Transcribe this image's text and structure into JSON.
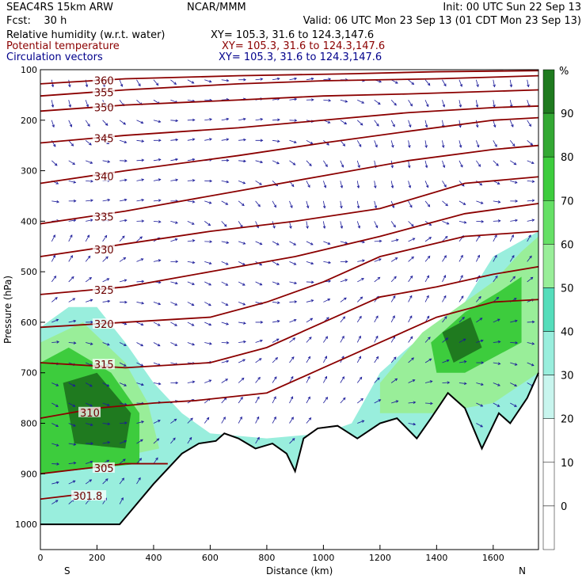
{
  "header": {
    "line1_left": "SEAC4RS 15km ARW",
    "line1_center": "NCAR/MMM",
    "line1_right": "Init: 00 UTC Sun 22 Sep 13",
    "line2_left": "Fcst:    30 h",
    "line2_right": "Valid: 06 UTC Mon 23 Sep 13 (01 CDT Mon 23 Sep 13)",
    "fields": [
      {
        "name": "Relative humidity (w.r.t. water)",
        "xy": "XY= 105.3, 31.6 to 124.3,147.6",
        "color": "#000000"
      },
      {
        "name": "Potential temperature",
        "xy": "XY= 105.3, 31.6 to 124.3,147.6",
        "color": "#8b0000"
      },
      {
        "name": "Circulation vectors",
        "xy": "XY= 105.3, 31.6 to 124.3,147.6",
        "color": "#00008b"
      }
    ]
  },
  "chart_data": {
    "type": "heatmap",
    "title": "",
    "xlabel": "Distance (km)",
    "ylabel": "Pressure (hPa)",
    "xlim": [
      0,
      1760
    ],
    "ylim": [
      1050,
      100
    ],
    "x_ticks": [
      0,
      200,
      400,
      600,
      800,
      1000,
      1200,
      1400,
      1600
    ],
    "y_ticks": [
      100,
      200,
      300,
      400,
      500,
      600,
      700,
      800,
      900,
      1000
    ],
    "x_end_labels": {
      "left": "S",
      "right": "N"
    },
    "colorbar": {
      "unit": "%",
      "labels": [
        "90",
        "80",
        "70",
        "60",
        "50",
        "40",
        "30",
        "20",
        "10",
        "0"
      ],
      "bounds": [
        100,
        90,
        80,
        70,
        60,
        50,
        40,
        30,
        20,
        10,
        0,
        -10
      ],
      "colors": [
        "#1f7a1f",
        "#33a833",
        "#3dcc3d",
        "#66e066",
        "#99ee99",
        "#55ddbb",
        "#99eedd",
        "#c8f5ee",
        "#ffffff",
        "#ffffff",
        "#ffffff"
      ]
    },
    "theta_contours": [
      {
        "label": "360",
        "points": [
          [
            0,
            128
          ],
          [
            300,
            118
          ],
          [
            700,
            112
          ],
          [
            1100,
            108
          ],
          [
            1400,
            104
          ],
          [
            1760,
            102
          ]
        ]
      },
      {
        "label": "355",
        "points": [
          [
            0,
            152
          ],
          [
            300,
            140
          ],
          [
            700,
            128
          ],
          [
            1000,
            122
          ],
          [
            1400,
            118
          ],
          [
            1760,
            112
          ]
        ]
      },
      {
        "label": "350",
        "points": [
          [
            0,
            182
          ],
          [
            300,
            170
          ],
          [
            700,
            160
          ],
          [
            1000,
            152
          ],
          [
            1300,
            148
          ],
          [
            1760,
            140
          ]
        ]
      },
      {
        "label": "345",
        "points": [
          [
            0,
            245
          ],
          [
            300,
            230
          ],
          [
            700,
            215
          ],
          [
            1000,
            200
          ],
          [
            1300,
            185
          ],
          [
            1600,
            175
          ],
          [
            1760,
            172
          ]
        ]
      },
      {
        "label": "340",
        "points": [
          [
            0,
            325
          ],
          [
            300,
            300
          ],
          [
            700,
            270
          ],
          [
            1000,
            245
          ],
          [
            1300,
            222
          ],
          [
            1600,
            200
          ],
          [
            1760,
            195
          ]
        ]
      },
      {
        "label": "335",
        "points": [
          [
            0,
            405
          ],
          [
            300,
            380
          ],
          [
            700,
            340
          ],
          [
            1000,
            310
          ],
          [
            1300,
            280
          ],
          [
            1600,
            258
          ],
          [
            1760,
            250
          ]
        ]
      },
      {
        "label": "330",
        "points": [
          [
            0,
            470
          ],
          [
            300,
            445
          ],
          [
            600,
            420
          ],
          [
            900,
            400
          ],
          [
            1200,
            375
          ],
          [
            1500,
            325
          ],
          [
            1760,
            312
          ]
        ]
      },
      {
        "label": "325",
        "points": [
          [
            0,
            545
          ],
          [
            300,
            530
          ],
          [
            600,
            500
          ],
          [
            900,
            470
          ],
          [
            1200,
            430
          ],
          [
            1500,
            385
          ],
          [
            1760,
            365
          ]
        ]
      },
      {
        "label": "320",
        "points": [
          [
            0,
            610
          ],
          [
            300,
            600
          ],
          [
            600,
            590
          ],
          [
            800,
            560
          ],
          [
            1000,
            520
          ],
          [
            1200,
            470
          ],
          [
            1500,
            430
          ],
          [
            1760,
            420
          ]
        ]
      },
      {
        "label": "315",
        "points": [
          [
            0,
            680
          ],
          [
            300,
            690
          ],
          [
            600,
            680
          ],
          [
            800,
            650
          ],
          [
            1000,
            600
          ],
          [
            1200,
            550
          ],
          [
            1400,
            530
          ],
          [
            1600,
            505
          ],
          [
            1760,
            490
          ]
        ]
      },
      {
        "label": "310",
        "points": [
          [
            0,
            790
          ],
          [
            200,
            770
          ],
          [
            400,
            760
          ],
          [
            550,
            755
          ],
          [
            800,
            740
          ],
          [
            1000,
            690
          ],
          [
            1200,
            640
          ],
          [
            1400,
            590
          ],
          [
            1600,
            560
          ],
          [
            1760,
            555
          ]
        ]
      },
      {
        "label": "305",
        "points": [
          [
            0,
            900
          ],
          [
            300,
            880
          ],
          [
            450,
            880
          ]
        ]
      },
      {
        "label": "301.8",
        "points": [
          [
            0,
            950
          ],
          [
            150,
            940
          ]
        ]
      }
    ],
    "terrain_pressure": [
      [
        0,
        1000
      ],
      [
        280,
        1000
      ],
      [
        400,
        920
      ],
      [
        500,
        860
      ],
      [
        560,
        840
      ],
      [
        620,
        835
      ],
      [
        650,
        820
      ],
      [
        700,
        830
      ],
      [
        760,
        850
      ],
      [
        820,
        840
      ],
      [
        870,
        860
      ],
      [
        900,
        895
      ],
      [
        930,
        830
      ],
      [
        980,
        810
      ],
      [
        1050,
        805
      ],
      [
        1120,
        830
      ],
      [
        1200,
        800
      ],
      [
        1260,
        790
      ],
      [
        1330,
        830
      ],
      [
        1380,
        790
      ],
      [
        1440,
        740
      ],
      [
        1500,
        770
      ],
      [
        1560,
        850
      ],
      [
        1620,
        780
      ],
      [
        1660,
        800
      ],
      [
        1720,
        750
      ],
      [
        1760,
        700
      ]
    ],
    "rh_regions": [
      {
        "rh": 35,
        "points": [
          [
            0,
            610
          ],
          [
            100,
            570
          ],
          [
            200,
            570
          ],
          [
            300,
            640
          ],
          [
            400,
            720
          ],
          [
            500,
            780
          ],
          [
            600,
            820
          ],
          [
            800,
            830
          ],
          [
            1000,
            820
          ],
          [
            1100,
            800
          ],
          [
            1200,
            700
          ],
          [
            1300,
            650
          ],
          [
            1500,
            560
          ],
          [
            1600,
            470
          ],
          [
            1760,
            420
          ],
          [
            1760,
            1000
          ],
          [
            0,
            1000
          ]
        ]
      },
      {
        "rh": 55,
        "points": [
          [
            0,
            640
          ],
          [
            150,
            600
          ],
          [
            300,
            680
          ],
          [
            380,
            760
          ],
          [
            420,
            850
          ],
          [
            0,
            900
          ]
        ]
      },
      {
        "rh": 75,
        "points": [
          [
            0,
            680
          ],
          [
            100,
            650
          ],
          [
            250,
            700
          ],
          [
            350,
            780
          ],
          [
            350,
            880
          ],
          [
            0,
            900
          ]
        ]
      },
      {
        "rh": 92,
        "points": [
          [
            80,
            720
          ],
          [
            200,
            700
          ],
          [
            320,
            780
          ],
          [
            300,
            850
          ],
          [
            120,
            840
          ]
        ]
      },
      {
        "rh": 55,
        "points": [
          [
            1200,
            720
          ],
          [
            1350,
            620
          ],
          [
            1500,
            560
          ],
          [
            1600,
            520
          ],
          [
            1700,
            460
          ],
          [
            1760,
            430
          ],
          [
            1760,
            700
          ],
          [
            1600,
            760
          ],
          [
            1400,
            780
          ],
          [
            1200,
            780
          ]
        ]
      },
      {
        "rh": 75,
        "points": [
          [
            1380,
            640
          ],
          [
            1500,
            580
          ],
          [
            1620,
            540
          ],
          [
            1700,
            510
          ],
          [
            1700,
            640
          ],
          [
            1500,
            700
          ],
          [
            1400,
            700
          ]
        ]
      },
      {
        "rh": 92,
        "points": [
          [
            1420,
            620
          ],
          [
            1520,
            590
          ],
          [
            1560,
            650
          ],
          [
            1460,
            680
          ]
        ]
      }
    ]
  }
}
